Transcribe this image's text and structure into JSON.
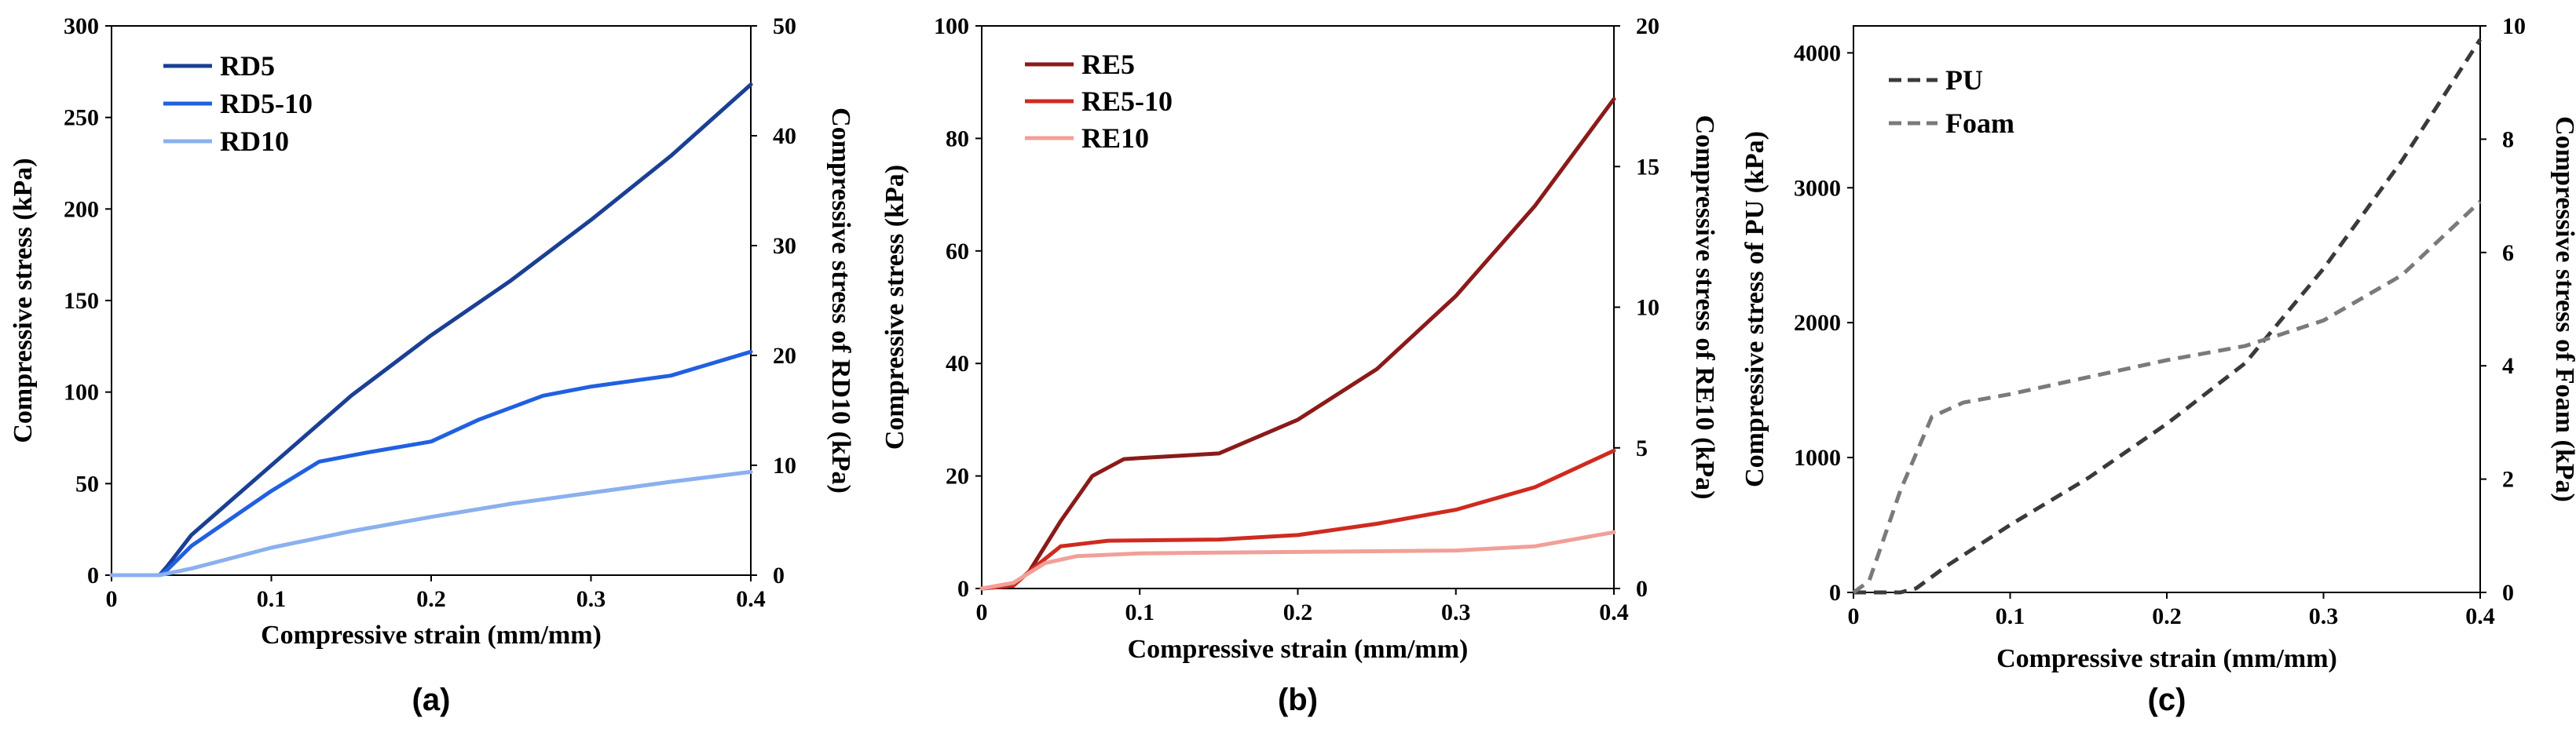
{
  "chart_data": [
    {
      "type": "line",
      "panel_label": "(a)",
      "xlabel": "Compressive strain (mm/mm)",
      "ylabel": "Compressive stress (kPa)",
      "y2label": "Compressive stress of RD10 (kPa)",
      "xlim": [
        0,
        0.4
      ],
      "ylim": [
        0,
        300
      ],
      "y2lim": [
        0,
        50
      ],
      "xticks": [
        "0",
        "0.1",
        "0.2",
        "0.3",
        "0.4"
      ],
      "yticks": [
        "0",
        "50",
        "100",
        "150",
        "200",
        "250",
        "300"
      ],
      "y2ticks": [
        "0",
        "10",
        "20",
        "30",
        "40",
        "50"
      ],
      "legend_position": "top-left",
      "series": [
        {
          "name": "RD5",
          "color": "#1b3f94",
          "axis": "left",
          "dash": false,
          "x": [
            0,
            0.03,
            0.035,
            0.05,
            0.1,
            0.15,
            0.2,
            0.25,
            0.3,
            0.35,
            0.4
          ],
          "y": [
            0,
            0,
            5,
            22,
            60,
            98,
            131,
            161,
            194,
            229,
            268
          ]
        },
        {
          "name": "RD5-10",
          "color": "#2060e0",
          "axis": "left",
          "dash": false,
          "x": [
            0,
            0.03,
            0.035,
            0.05,
            0.1,
            0.13,
            0.16,
            0.2,
            0.23,
            0.27,
            0.3,
            0.35,
            0.4
          ],
          "y": [
            0,
            0,
            3,
            16,
            46,
            62,
            67,
            73,
            85,
            98,
            103,
            109,
            122
          ]
        },
        {
          "name": "RD10",
          "color": "#8ab0ee",
          "axis": "right",
          "dash": false,
          "x": [
            0,
            0.03,
            0.05,
            0.1,
            0.15,
            0.2,
            0.25,
            0.3,
            0.35,
            0.4
          ],
          "y": [
            0,
            0,
            0.6,
            2.5,
            4,
            5.3,
            6.5,
            7.5,
            8.5,
            9.4
          ]
        }
      ]
    },
    {
      "type": "line",
      "panel_label": "(b)",
      "xlabel": "Compressive strain (mm/mm)",
      "ylabel": "Compressive stress (kPa)",
      "y2label": "Compressive stress of RE10 (kPa)",
      "xlim": [
        0,
        0.4
      ],
      "ylim": [
        0,
        100
      ],
      "y2lim": [
        0,
        20
      ],
      "xticks": [
        "0",
        "0.1",
        "0.2",
        "0.3",
        "0.4"
      ],
      "yticks": [
        "0",
        "20",
        "40",
        "60",
        "80",
        "100"
      ],
      "y2ticks": [
        "0",
        "5",
        "10",
        "15",
        "20"
      ],
      "legend_position": "top-left",
      "series": [
        {
          "name": "RE5",
          "color": "#8b1a1a",
          "axis": "left",
          "dash": false,
          "x": [
            0,
            0.02,
            0.03,
            0.05,
            0.07,
            0.09,
            0.1,
            0.15,
            0.2,
            0.25,
            0.3,
            0.35,
            0.4
          ],
          "y": [
            0,
            0.5,
            3,
            12,
            20,
            23,
            23.2,
            24,
            30,
            39,
            52,
            68,
            87
          ]
        },
        {
          "name": "RE5-10",
          "color": "#d02a20",
          "axis": "left",
          "dash": false,
          "x": [
            0,
            0.02,
            0.03,
            0.05,
            0.08,
            0.15,
            0.2,
            0.25,
            0.3,
            0.35,
            0.4
          ],
          "y": [
            0,
            0.5,
            3,
            7.5,
            8.5,
            8.7,
            9.5,
            11.5,
            14,
            18,
            24.5
          ]
        },
        {
          "name": "RE10",
          "color": "#f0a098",
          "axis": "right",
          "dash": false,
          "x": [
            0,
            0.02,
            0.04,
            0.06,
            0.1,
            0.2,
            0.3,
            0.35,
            0.4
          ],
          "y": [
            0,
            0.2,
            0.9,
            1.15,
            1.25,
            1.3,
            1.35,
            1.5,
            2
          ]
        }
      ]
    },
    {
      "type": "line",
      "panel_label": "(c)",
      "xlabel": "Compressive strain (mm/mm)",
      "ylabel": "Compressive stress of PU (kPa)",
      "y2label": "Compressive stress of Foam (kPa)",
      "xlim": [
        0,
        0.4
      ],
      "ylim": [
        0,
        4200
      ],
      "y2lim": [
        0,
        10
      ],
      "xticks": [
        "0",
        "0.1",
        "0.2",
        "0.3",
        "0.4"
      ],
      "yticks": [
        "0",
        "1000",
        "2000",
        "3000",
        "4000"
      ],
      "y2ticks": [
        "0",
        "2",
        "4",
        "6",
        "8",
        "10"
      ],
      "legend_position": "top-left",
      "series": [
        {
          "name": "PU",
          "color": "#3a3a3a",
          "axis": "left",
          "dash": true,
          "x": [
            0,
            0.03,
            0.04,
            0.06,
            0.1,
            0.15,
            0.2,
            0.25,
            0.3,
            0.35,
            0.4
          ],
          "y": [
            0,
            0,
            30,
            200,
            500,
            850,
            1250,
            1700,
            2400,
            3200,
            4100
          ]
        },
        {
          "name": "Foam",
          "color": "#7a7a7a",
          "axis": "right",
          "dash": true,
          "x": [
            0,
            0.01,
            0.03,
            0.05,
            0.07,
            0.1,
            0.15,
            0.2,
            0.25,
            0.3,
            0.35,
            0.4
          ],
          "y": [
            0,
            0.2,
            1.8,
            3.1,
            3.35,
            3.5,
            3.8,
            4.1,
            4.35,
            4.8,
            5.6,
            6.9
          ]
        }
      ]
    }
  ]
}
